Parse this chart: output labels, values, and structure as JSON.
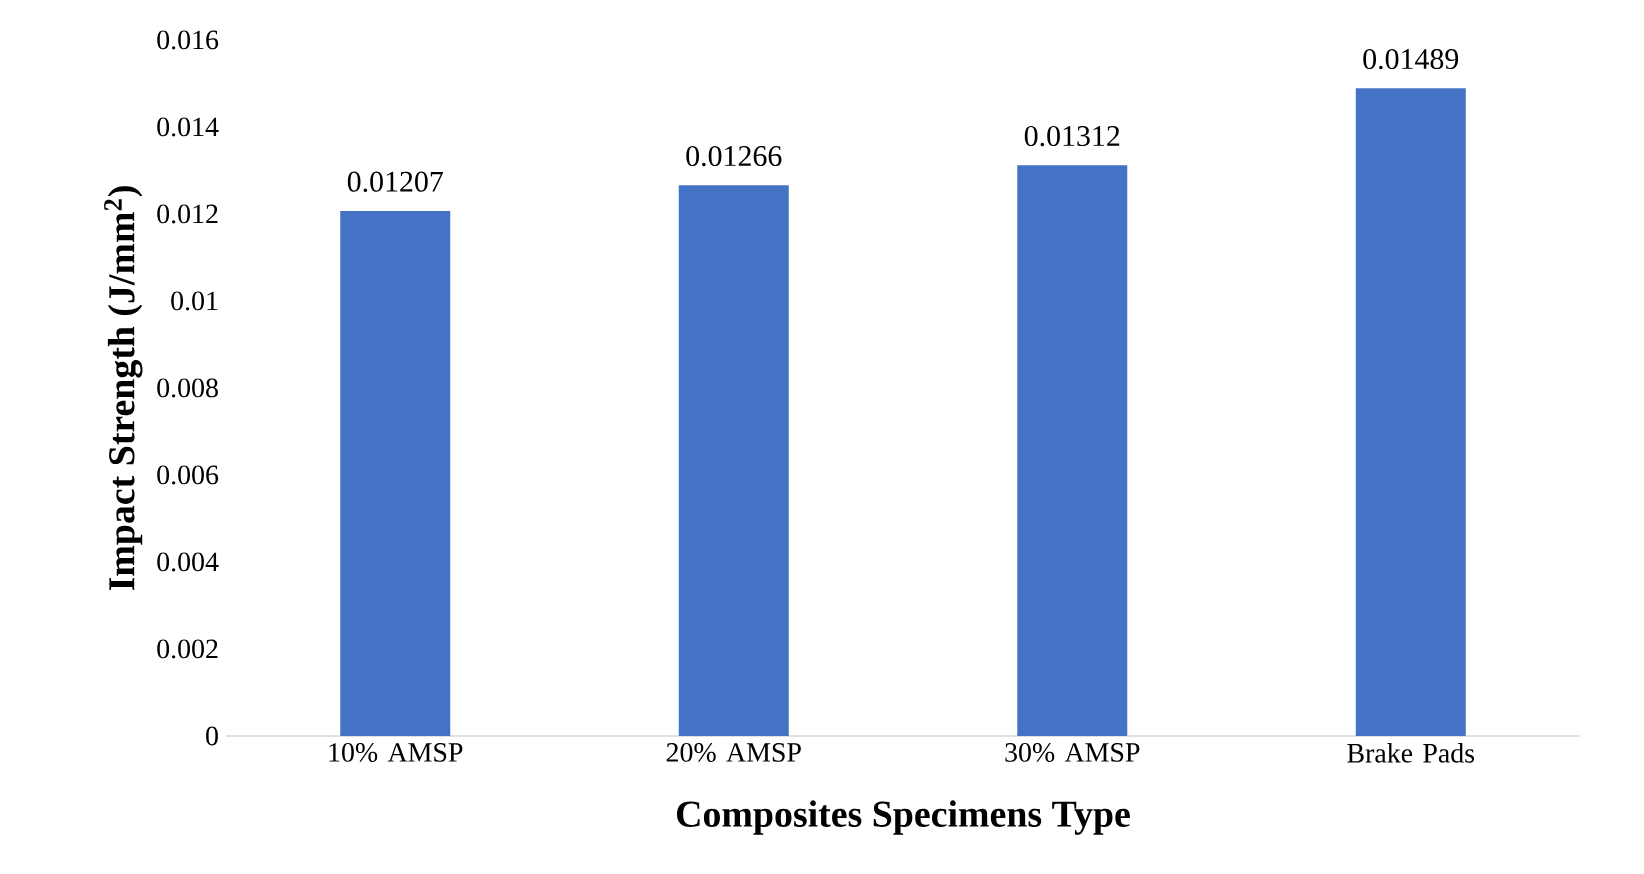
{
  "chart_data": {
    "type": "bar",
    "xlabel": "Composites Specimens Type",
    "ylabel": "Impact Strength (J/mm$^{2}$)",
    "categories": [
      "10% AMSP",
      "20% AMSP",
      "30% AMSP",
      "Brake Pads"
    ],
    "values": [
      0.01207,
      0.01266,
      0.01312,
      0.01489
    ],
    "color": "#4472c4",
    "ylim": [
      0,
      0.016
    ],
    "yticks": [
      0,
      0.002,
      0.004,
      0.006,
      0.008,
      0.01,
      0.012,
      0.014,
      0.016
    ],
    "data_labels": true
  }
}
